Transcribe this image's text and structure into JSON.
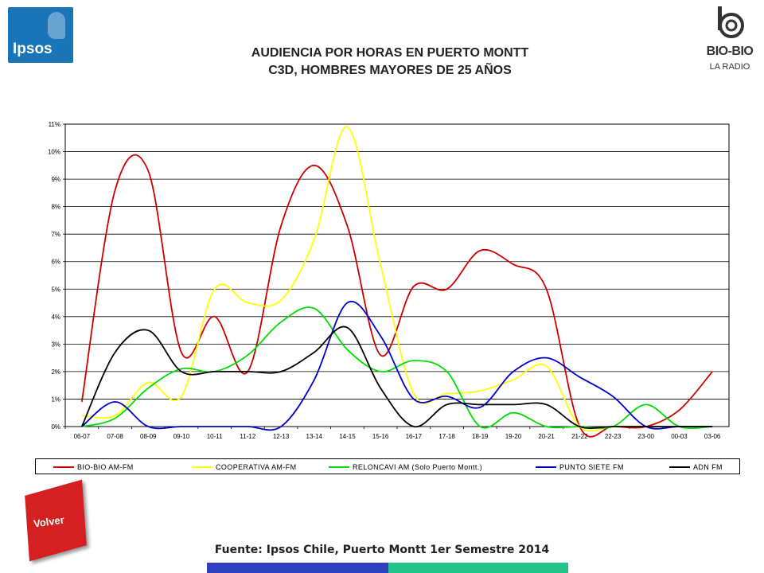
{
  "header": {
    "title_line1": "AUDIENCIA POR HORAS EN PUERTO MONTT",
    "title_line2": "C3D, HOMBRES MAYORES DE 25 AÑOS"
  },
  "logos": {
    "left_text": "Ipsos",
    "right_name": "BIO-BIO",
    "right_sub": "LA RADIO"
  },
  "chart_data": {
    "type": "line",
    "title": "AUDIENCIA POR HORAS EN PUERTO MONTT C3D, HOMBRES MAYORES DE 25 AÑOS",
    "xlabel": "",
    "ylabel": "",
    "ylim": [
      0,
      11
    ],
    "yticks": [
      "0%",
      "1%",
      "2%",
      "3%",
      "4%",
      "5%",
      "6%",
      "7%",
      "8%",
      "9%",
      "10%",
      "11%"
    ],
    "grid": true,
    "legend_position": "bottom",
    "categories": [
      "06-07",
      "07-08",
      "08-09",
      "09-10",
      "10-11",
      "11-12",
      "12-13",
      "13-14",
      "14-15",
      "15-16",
      "16-17",
      "17-18",
      "18-19",
      "19-20",
      "20-21",
      "21-22",
      "22-23",
      "23-00",
      "00-03",
      "03-06"
    ],
    "series": [
      {
        "name": "BIO-BIO AM-FM",
        "color": "#cc0000",
        "values": [
          0.9,
          8.6,
          9.3,
          2.7,
          4.0,
          2.0,
          7.3,
          9.5,
          7.3,
          2.6,
          5.1,
          5.0,
          6.4,
          5.9,
          5.0,
          0.0,
          0.0,
          0.0,
          0.6,
          2.0
        ]
      },
      {
        "name": "COOPERATIVA AM-FM",
        "color": "#ffff00",
        "values": [
          0.4,
          0.4,
          1.6,
          1.1,
          5.0,
          4.5,
          4.6,
          6.8,
          10.9,
          5.9,
          1.2,
          1.2,
          1.3,
          1.7,
          2.2,
          0.0,
          0.0,
          0.0,
          0.0,
          0.0
        ]
      },
      {
        "name": "RELONCAVI AM (Solo Puerto Montt.)",
        "color": "#00dd00",
        "values": [
          0.0,
          0.3,
          1.4,
          2.1,
          2.0,
          2.6,
          3.8,
          4.3,
          2.8,
          2.0,
          2.4,
          2.0,
          0.0,
          0.5,
          0.0,
          0.0,
          0.0,
          0.8,
          0.0,
          0.0
        ]
      },
      {
        "name": "PUNTO SIETE FM",
        "color": "#0000cc",
        "values": [
          0.0,
          0.9,
          0.0,
          0.0,
          0.0,
          0.0,
          0.0,
          1.7,
          4.5,
          3.3,
          1.0,
          1.1,
          0.7,
          2.0,
          2.5,
          1.8,
          1.1,
          0.0,
          0.0,
          0.0
        ]
      },
      {
        "name": "ADN FM",
        "color": "#000000",
        "values": [
          0.0,
          2.7,
          3.5,
          2.0,
          2.0,
          2.0,
          2.0,
          2.7,
          3.6,
          1.4,
          0.0,
          0.8,
          0.8,
          0.8,
          0.8,
          0.0,
          0.0,
          0.0,
          0.0,
          0.0
        ]
      }
    ]
  },
  "footer": {
    "source": "Fuente: Ipsos Chile, Puerto Montt 1er Semestre 2014",
    "back_button": "Volver"
  },
  "colors": {
    "ipsos_blue": "#1a74b8",
    "volver_red": "#d42020",
    "bar_blue": "#2e3fbf",
    "bar_green": "#22c48a"
  }
}
